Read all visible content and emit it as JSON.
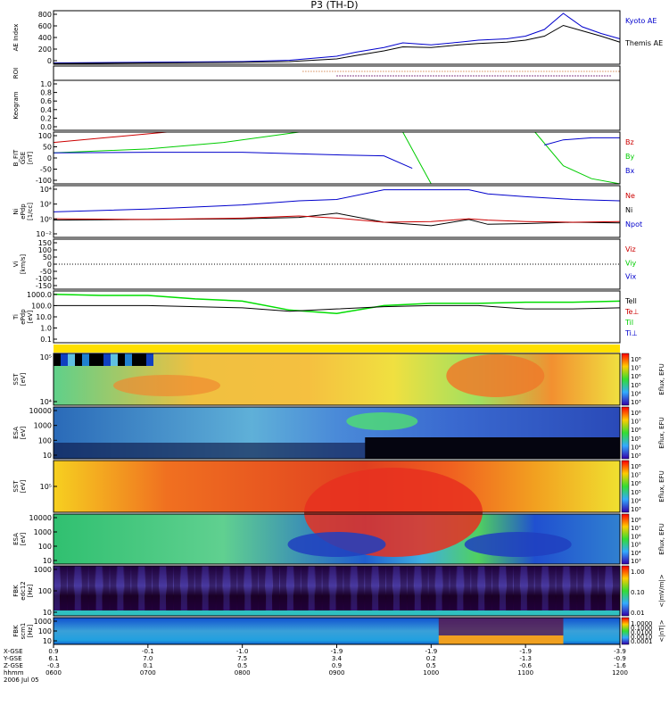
{
  "title": "P3 (TH-D)",
  "colors": {
    "kyoto": "#0000cc",
    "themis": "#000000",
    "bz": "#cc0000",
    "by": "#00cc00",
    "bx": "#0000cc",
    "ne": "#cc0000",
    "ni": "#0000cc",
    "npot": "#000000",
    "telltrace": "#000000",
    "tigreen": "#00dd00"
  },
  "panels": [
    {
      "id": "ae",
      "ylabel": [
        "AE Index"
      ],
      "ticks": [
        "800",
        "600",
        "400",
        "200",
        "0"
      ],
      "legend": [
        {
          "text": "Kyoto AE",
          "color": "#0000cc"
        },
        {
          "text": "Themis AE",
          "color": "#000000"
        }
      ]
    },
    {
      "id": "roi",
      "ylabel": [
        "ROI"
      ],
      "ticks": [],
      "legend": []
    },
    {
      "id": "keogram",
      "ylabel": [
        "Keogram"
      ],
      "ticks": [
        "1.0",
        "0.8",
        "0.6",
        "0.4",
        "0.2",
        "0.0"
      ],
      "legend": []
    },
    {
      "id": "bfit",
      "ylabel": [
        "B_FIT",
        "GSE",
        "[nT]"
      ],
      "ticks": [
        "100",
        "50",
        "0",
        "-50",
        "-100"
      ],
      "legend": [
        {
          "text": "Bz",
          "color": "#cc0000"
        },
        {
          "text": "By",
          "color": "#00cc00"
        },
        {
          "text": "Bx",
          "color": "#0000cc"
        }
      ]
    },
    {
      "id": "ni",
      "ylabel": [
        "Ni",
        "ePdp",
        "[1/cc]"
      ],
      "ticks": [
        "10⁴",
        "10²",
        "10⁰",
        "10⁻²"
      ],
      "legend": [
        {
          "text": "Ne",
          "color": "#cc0000"
        },
        {
          "text": "Ni",
          "color": "#000000"
        },
        {
          "text": "Npot",
          "color": "#0000cc"
        }
      ]
    },
    {
      "id": "vi",
      "ylabel": [
        "Vi",
        "[km/s]"
      ],
      "ticks": [
        "150",
        "100",
        "50",
        "0",
        "-50",
        "-100",
        "-150"
      ],
      "legend": [
        {
          "text": "Viz",
          "color": "#cc0000"
        },
        {
          "text": "Viy",
          "color": "#00cc00"
        },
        {
          "text": "Vix",
          "color": "#0000cc"
        }
      ]
    },
    {
      "id": "ti",
      "ylabel": [
        "Ti",
        "ePdp",
        "[eV]"
      ],
      "ticks": [
        "1000.0",
        "100.0",
        "10.0",
        "1.0",
        "0.1"
      ],
      "legend": [
        {
          "text": "Tell",
          "color": "#000000"
        },
        {
          "text": "Te⊥",
          "color": "#cc0000"
        },
        {
          "text": "Til",
          "color": "#00cc00"
        },
        {
          "text": "Ti⊥",
          "color": "#0000cc"
        }
      ]
    },
    {
      "id": "sst1",
      "ylabel": [
        "SST",
        "[eV]"
      ],
      "ticks": [
        "10⁵",
        "10⁴"
      ],
      "cb_label": "Eflux, EFU",
      "cb_ticks": [
        "10⁸",
        "10⁷",
        "10⁶",
        "10⁵",
        "10⁴",
        "10³"
      ]
    },
    {
      "id": "esa1",
      "ylabel": [
        "ESA",
        "[eV]"
      ],
      "ticks": [
        "10000",
        "1000",
        "100",
        "10"
      ],
      "cb_label": "Eflux, EFU",
      "cb_ticks": [
        "10⁸",
        "10⁷",
        "10⁶",
        "10⁵",
        "10⁴",
        "10³"
      ]
    },
    {
      "id": "sst2",
      "ylabel": [
        "SST",
        "[eV]"
      ],
      "ticks": [
        "10⁵"
      ],
      "cb_label": "Eflux, EFU",
      "cb_ticks": [
        "10⁸",
        "10⁷",
        "10⁶",
        "10⁵",
        "10⁴",
        "10³"
      ]
    },
    {
      "id": "esa2",
      "ylabel": [
        "ESA",
        "[eV]"
      ],
      "ticks": [
        "10000",
        "1000",
        "100",
        "10"
      ],
      "cb_label": "Eflux, EFU",
      "cb_ticks": [
        "10⁸",
        "10⁷",
        "10⁶",
        "10⁵",
        "10⁴",
        "10³"
      ]
    },
    {
      "id": "fbk1",
      "ylabel": [
        "FBK",
        "edc12",
        "[Hz]"
      ],
      "ticks": [
        "1000",
        "100",
        "10"
      ],
      "cb_label": "<|mV/m|>",
      "cb_ticks": [
        "1.00",
        "0.10",
        "0.01"
      ]
    },
    {
      "id": "fbk2",
      "ylabel": [
        "FBK",
        "scm1",
        "[Hz]"
      ],
      "ticks": [
        "1000",
        "100",
        "10"
      ],
      "cb_label": "<|nT|>",
      "cb_ticks": [
        "1.0000",
        "0.1000",
        "0.0100",
        "0.0010",
        "0.0001"
      ]
    }
  ],
  "xaxis": {
    "row_labels": [
      "X-GSE",
      "Y-GSE",
      "Z-GSE",
      "hhmm",
      "2006 Jul 05"
    ],
    "columns": [
      [
        "0.9",
        "6.1",
        "-0.3",
        "0600"
      ],
      [
        "-0.1",
        "7.0",
        "0.1",
        "0700"
      ],
      [
        "-1.0",
        "7.5",
        "0.5",
        "0800"
      ],
      [
        "-1.9",
        "3.4",
        "0.9",
        "0900"
      ],
      [
        "-1.9",
        "0.2",
        "0.5",
        "1000"
      ],
      [
        "-1.9",
        "-1.3",
        "-0.6",
        "1100"
      ],
      [
        "-3.9",
        "-0.9",
        "-1.6",
        "1200"
      ]
    ]
  },
  "chart_data": {
    "type": "line",
    "title": "P3 (TH-D)",
    "x_range": [
      "0600",
      "1200"
    ],
    "ae_index": {
      "x_hours": [
        6.0,
        6.5,
        7.0,
        7.5,
        8.0,
        8.5,
        9.0,
        9.2,
        9.5,
        9.7,
        10.0,
        10.3,
        10.5,
        10.8,
        11.0,
        11.2,
        11.4,
        11.6,
        11.8,
        12.0
      ],
      "series": [
        {
          "name": "Kyoto AE",
          "values": [
            20,
            25,
            30,
            35,
            40,
            60,
            120,
            180,
            250,
            320,
            290,
            330,
            360,
            380,
            420,
            520,
            760,
            560,
            460,
            380
          ]
        },
        {
          "name": "Themis AE",
          "values": [
            10,
            15,
            20,
            25,
            30,
            40,
            80,
            130,
            200,
            260,
            250,
            290,
            310,
            330,
            360,
            420,
            580,
            500,
            420,
            330
          ]
        }
      ],
      "ylim": [
        0,
        800
      ]
    },
    "b_fit": {
      "ylim": [
        -100,
        100
      ],
      "series": [
        "Bz",
        "By",
        "Bx"
      ]
    },
    "vi": {
      "ylim": [
        -150,
        150
      ],
      "series": [
        "Viz",
        "Viy",
        "Vix"
      ]
    },
    "ti": {
      "ylim": [
        0.1,
        1000
      ],
      "series": [
        "Tell",
        "Te⊥",
        "Til",
        "Ti⊥"
      ]
    }
  }
}
